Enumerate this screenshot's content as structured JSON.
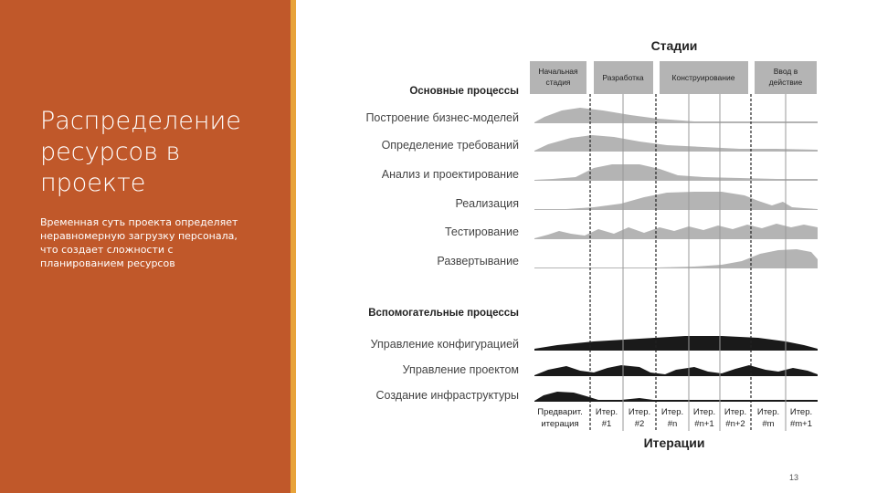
{
  "slide": {
    "title_lines": [
      "Распределение",
      "ресурсов в",
      "проекте"
    ],
    "subtitle_lines": [
      "Временная суть проекта определяет",
      "неравномерную загрузку персонала,",
      "что создает сложности с",
      "планированием ресурсов"
    ],
    "page_number": "13",
    "background_color": "#c0582a",
    "accent_color": "#e8a33a"
  },
  "diagram": {
    "stages_title": "Стадии",
    "stages": [
      {
        "lines": [
          "Начальная",
          "стадия"
        ]
      },
      {
        "lines": [
          "Разработка"
        ]
      },
      {
        "lines": [
          "Конструирование"
        ]
      },
      {
        "lines": [
          "Ввод в",
          "действие"
        ]
      }
    ],
    "main_header": "Основные процессы",
    "main_processes": [
      "Построение бизнес-моделей",
      "Определение требований",
      "Анализ и проектирование",
      "Реализация",
      "Тестирование",
      "Развертывание"
    ],
    "support_header": "Вспомогательные процессы",
    "support_processes": [
      "Управление конфигурацией",
      "Управление проектом",
      "Создание инфраструктуры"
    ],
    "iterations": [
      {
        "lines": [
          "Предварит.",
          "итерация"
        ]
      },
      {
        "lines": [
          "Итер.",
          "#1"
        ]
      },
      {
        "lines": [
          "Итер.",
          "#2"
        ]
      },
      {
        "lines": [
          "Итер.",
          "#n"
        ]
      },
      {
        "lines": [
          "Итер.",
          "#n+1"
        ]
      },
      {
        "lines": [
          "Итер.",
          "#n+2"
        ]
      },
      {
        "lines": [
          "Итер.",
          "#m"
        ]
      },
      {
        "lines": [
          "Итер.",
          "#m+1"
        ]
      }
    ],
    "iterations_title": "Итерации",
    "main_fill_color": "#b4b4b4",
    "support_fill_color": "#1a1a1a",
    "stage_header_color": "#b4b4b4"
  }
}
